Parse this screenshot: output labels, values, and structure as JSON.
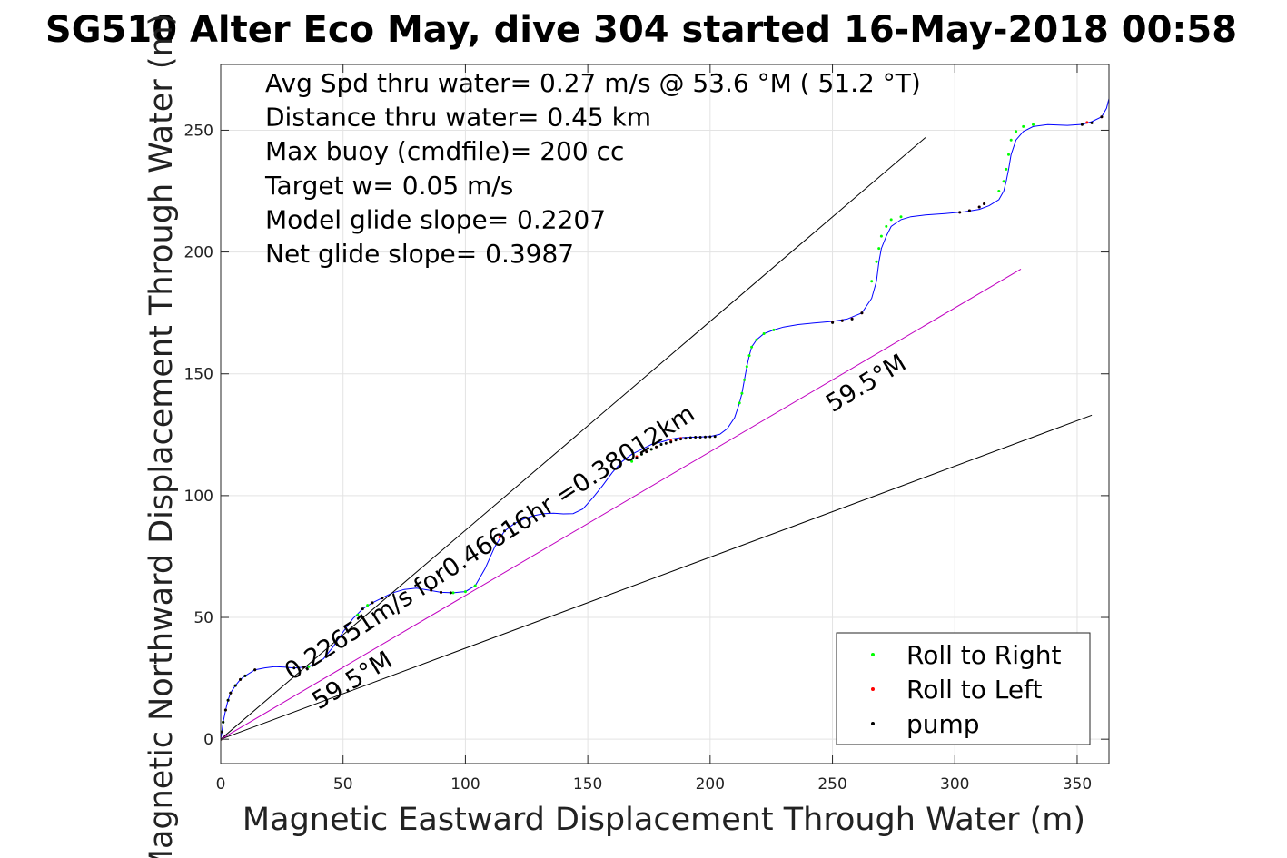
{
  "chart_data": {
    "type": "line",
    "title": "SG510 Alter Eco May, dive 304 started 16-May-2018 00:58",
    "xlabel": "Magnetic Eastward Displacement Through Water (m)",
    "ylabel": "Magnetic Northward Displacement Through Water (m)",
    "xlim": [
      0,
      363
    ],
    "ylim": [
      -10,
      277
    ],
    "xticks": [
      "0",
      "50",
      "100",
      "150",
      "200",
      "250",
      "300",
      "350"
    ],
    "yticks": [
      "0",
      "50",
      "100",
      "150",
      "200",
      "250"
    ],
    "xtick_values": [
      0,
      50,
      100,
      150,
      200,
      250,
      300,
      350
    ],
    "ytick_values": [
      0,
      50,
      100,
      150,
      200,
      250
    ],
    "grid": true,
    "stats": [
      "Avg Spd thru water=  0.27 m/s @  53.6 °M ( 51.2 °T)",
      "Distance thru water=  0.45 km",
      "Max buoy (cmdfile)= 200 cc",
      "Target w= 0.05 m/s",
      "Model glide slope= 0.2207",
      "Net glide slope= 0.3987"
    ],
    "annotations": [
      {
        "text": "0.22651m/s for0.46616hr =0.38012km",
        "x": 29,
        "y": 24,
        "angle_deg": 33
      },
      {
        "text": "59.5°M",
        "x": 250,
        "y": 134,
        "angle_deg": 31
      },
      {
        "text": "59.5°M",
        "x": 40,
        "y": 12,
        "angle_deg": 31
      }
    ],
    "series": [
      {
        "name": "",
        "color": "#0000ff",
        "x": [
          0,
          0.5,
          1,
          2,
          3,
          4,
          6,
          8,
          10,
          14,
          18,
          22,
          26,
          30,
          34,
          38,
          42,
          46,
          50,
          54,
          58,
          62,
          66,
          70,
          75,
          80,
          85,
          90,
          95,
          100,
          104,
          108,
          112,
          116,
          120,
          124,
          128,
          132,
          136,
          140,
          144,
          148,
          152,
          156,
          160,
          164,
          168,
          172,
          176,
          180,
          184,
          188,
          192,
          196,
          200,
          204,
          207,
          210,
          212,
          213,
          214,
          215,
          216,
          217,
          219,
          222,
          226,
          230,
          236,
          242,
          250,
          256,
          262,
          266,
          268,
          269,
          270,
          272,
          274,
          278,
          282,
          288,
          296,
          304,
          310,
          314,
          318,
          320,
          321,
          322,
          323,
          325,
          328,
          332,
          338,
          346,
          352,
          356,
          360,
          362,
          363
        ],
        "y": [
          0,
          3,
          7,
          12,
          16,
          19,
          22,
          24.5,
          26,
          28.5,
          29.3,
          29.8,
          29.6,
          29.2,
          29.6,
          30.5,
          33,
          38,
          44,
          49.5,
          53.5,
          56,
          58,
          60,
          61.5,
          62,
          61.2,
          60.3,
          60.1,
          60.6,
          63,
          70,
          79,
          85.5,
          88.5,
          90.5,
          91.8,
          92.6,
          92.8,
          92.5,
          92.6,
          94.5,
          99,
          104,
          109.5,
          114,
          117,
          119,
          121,
          122,
          123.2,
          123.8,
          124,
          124.1,
          124.3,
          125.2,
          127.5,
          132,
          138,
          142,
          147.5,
          153,
          157.5,
          161,
          164,
          166.5,
          168,
          169.2,
          170.2,
          170.8,
          171.5,
          172.5,
          175,
          181,
          188,
          196,
          201.5,
          206.5,
          210.5,
          213.3,
          214.5,
          215.2,
          215.8,
          216.5,
          217.5,
          219,
          221.5,
          225,
          229,
          234,
          240,
          246,
          249.5,
          251.5,
          252.3,
          252,
          252.4,
          253.5,
          255.5,
          259,
          263
        ]
      },
      {
        "name": "",
        "color": "#000000",
        "x": [
          0,
          288
        ],
        "y": [
          0,
          247
        ]
      },
      {
        "name": "",
        "color": "#000000",
        "x": [
          0,
          356
        ],
        "y": [
          0,
          133
        ]
      },
      {
        "name": "",
        "color": "#c000c0",
        "x": [
          0,
          327
        ],
        "y": [
          0,
          193
        ]
      }
    ],
    "markers": {
      "roll_right_color": "#00ff00",
      "roll_left_color": "#ff0000",
      "pump_color": "#000000",
      "roll_right": {
        "x": [
          0.5,
          1,
          2,
          3,
          4,
          6,
          8,
          10,
          14,
          36,
          56,
          60,
          95,
          100,
          104,
          168,
          172,
          176,
          180,
          212,
          213,
          214,
          215,
          216,
          217,
          219,
          222,
          226,
          266,
          268,
          269,
          270,
          272,
          274,
          278,
          318,
          320,
          321,
          322,
          323,
          325,
          328,
          332
        ],
        "y": [
          3,
          7,
          12,
          16,
          19,
          22,
          24.5,
          26,
          28.5,
          29.8,
          51,
          55,
          60.1,
          60.6,
          63,
          114,
          117,
          119,
          121,
          138,
          142,
          147.5,
          153,
          157.5,
          161,
          164,
          166.5,
          168,
          188,
          196,
          201.5,
          206.5,
          210.5,
          213.3,
          214.5,
          225,
          229,
          234,
          240,
          246,
          249.5,
          251.5,
          252.3
        ]
      },
      "roll_left": {
        "x": [
          0,
          2,
          4,
          8,
          14,
          34,
          62,
          66,
          86,
          90,
          114,
          118,
          122,
          170,
          174,
          178,
          184,
          188,
          250,
          254,
          258,
          262,
          302,
          306,
          310,
          312,
          354,
          360
        ],
        "y": [
          0,
          12,
          19,
          24.5,
          28.5,
          29.6,
          56,
          58,
          61.2,
          60.3,
          83,
          87,
          89,
          116,
          118,
          120,
          122.5,
          123.5,
          171.2,
          171.8,
          172.6,
          175,
          216.3,
          217,
          218.5,
          219.8,
          253.2,
          255.5
        ]
      },
      "pump": {
        "x": [
          0,
          0.5,
          1,
          2,
          3,
          4,
          6,
          8,
          10,
          14,
          30,
          34,
          58,
          62,
          66,
          86,
          90,
          94,
          116,
          118,
          120,
          122,
          170,
          172,
          174,
          176,
          178,
          180,
          182,
          184,
          186,
          188,
          190,
          192,
          194,
          196,
          198,
          200,
          202,
          250,
          254,
          258,
          262,
          302,
          306,
          310,
          312,
          352,
          356,
          360
        ],
        "y": [
          0,
          3,
          7,
          12,
          16,
          19,
          22,
          24.5,
          26,
          28.5,
          29.2,
          29.6,
          53.5,
          56,
          58,
          61.2,
          60.3,
          60.1,
          85.5,
          87,
          88.5,
          89.5,
          115.5,
          117,
          118,
          119,
          120,
          121,
          121.5,
          122,
          122.8,
          123.2,
          123.5,
          123.8,
          124,
          124,
          124.1,
          124.2,
          124.3,
          171,
          171.8,
          172.5,
          175,
          216.3,
          217,
          218.5,
          219.8,
          252.3,
          253,
          255.5
        ]
      }
    },
    "legend": {
      "placement": "bottom-right",
      "entries": [
        {
          "label": "Roll to Right",
          "color": "#00ff00"
        },
        {
          "label": "Roll to Left",
          "color": "#ff0000"
        },
        {
          "label": "pump",
          "color": "#000000"
        }
      ]
    }
  }
}
